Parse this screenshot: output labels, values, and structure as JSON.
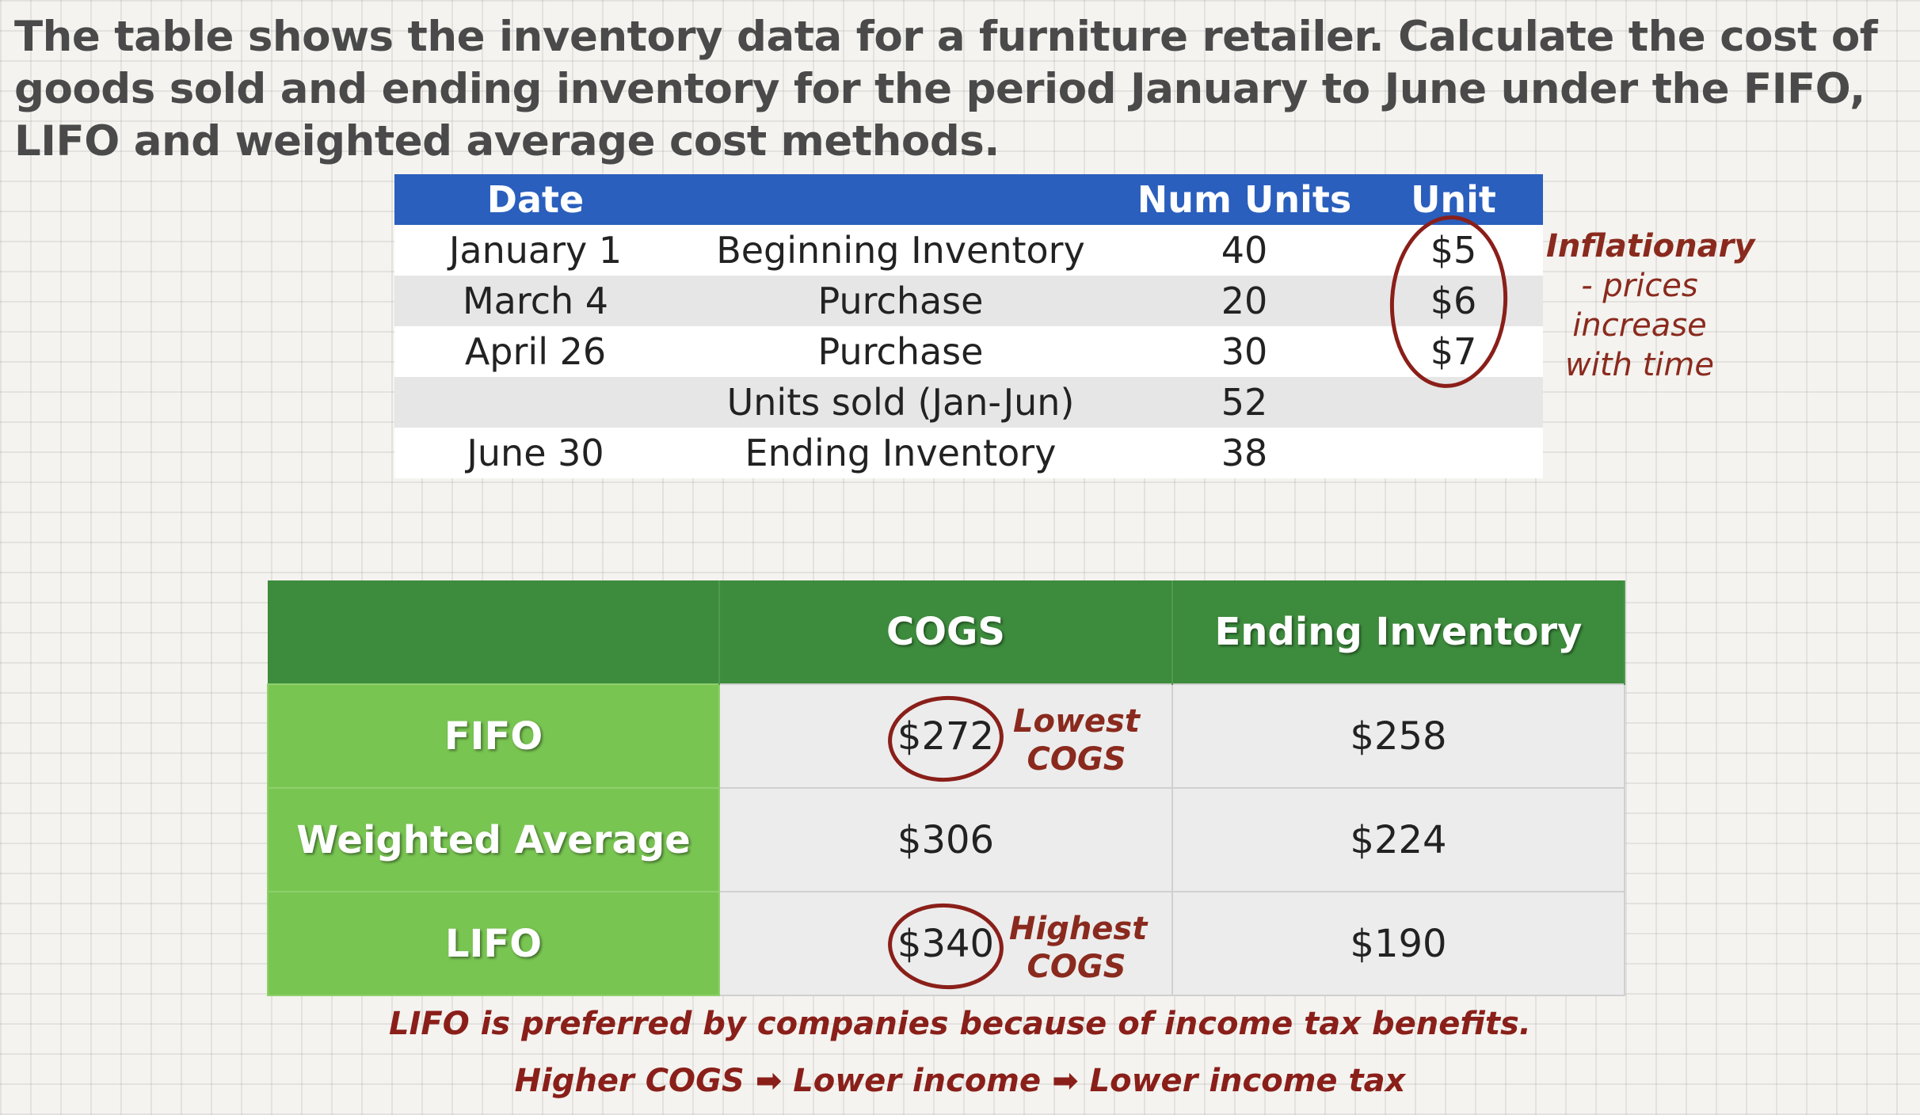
{
  "question": "The table shows the inventory data for a furniture retailer. Calculate the cost of goods sold and ending inventory for the period January to June under the FIFO, LIFO and weighted average cost methods.",
  "inventory_table": {
    "headers": [
      "Date",
      "",
      "Num Units",
      "Unit"
    ],
    "rows": [
      [
        "January 1",
        "Beginning Inventory",
        "40",
        "$5"
      ],
      [
        "March 4",
        "Purchase",
        "20",
        "$6"
      ],
      [
        "April 26",
        "Purchase",
        "30",
        "$7"
      ],
      [
        "",
        "Units sold (Jan-Jun)",
        "52",
        ""
      ],
      [
        "June 30",
        "Ending Inventory",
        "38",
        ""
      ]
    ]
  },
  "inflation_note": {
    "title": "Inflationary",
    "line1": "- prices",
    "line2": "increase",
    "line3": "with time"
  },
  "comparison_table": {
    "headers": [
      "",
      "COGS",
      "Ending Inventory"
    ],
    "rows": [
      {
        "method": "FIFO",
        "cogs": "$272",
        "ending": "$258",
        "note1": "Lowest",
        "note2": "COGS"
      },
      {
        "method": "Weighted Average",
        "cogs": "$306",
        "ending": "$224"
      },
      {
        "method": "LIFO",
        "cogs": "$340",
        "ending": "$190",
        "note1": "Highest",
        "note2": "COGS"
      }
    ]
  },
  "footer": {
    "line1": "LIFO is preferred by companies because of income tax benefits.",
    "part1": "Higher COGS",
    "arrow": "➡",
    "part2": "Lower income",
    "part3": "Lower income tax"
  }
}
